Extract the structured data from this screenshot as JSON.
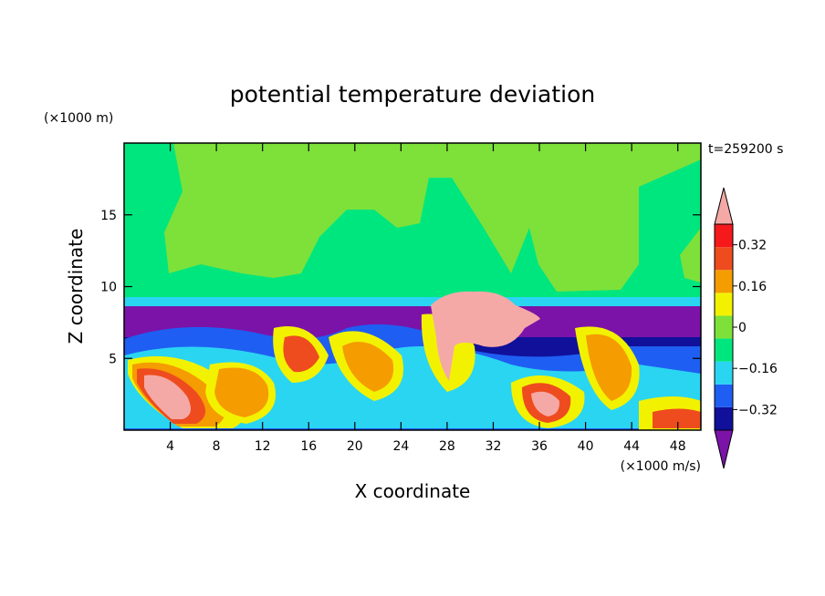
{
  "chart_data": {
    "type": "heatmap",
    "title": "potential temperature deviation",
    "xlabel": "X coordinate",
    "ylabel": "Z coordinate",
    "x_unit": "(×1000 m/s)",
    "y_unit": "(×1000 m)",
    "time_label": "t=259200 s",
    "xlim": [
      0,
      50
    ],
    "ylim": [
      0,
      20
    ],
    "x_ticks": [
      4,
      8,
      12,
      16,
      20,
      24,
      28,
      32,
      36,
      40,
      44,
      48
    ],
    "y_ticks": [
      5,
      10,
      15
    ],
    "colorbar": {
      "levels": [
        -0.4,
        -0.32,
        -0.24,
        -0.16,
        -0.08,
        0,
        0.08,
        0.16,
        0.24,
        0.32,
        0.4
      ],
      "tick_values": [
        0.32,
        0.16,
        0,
        -0.16,
        -0.32
      ],
      "tick_labels": [
        "0.32",
        "0.16",
        "0",
        "−0.16",
        "−0.32"
      ],
      "colors": [
        "#7b13a8",
        "#10109a",
        "#1f5ef2",
        "#2ad5f2",
        "#00e67e",
        "#7de13a",
        "#f2f200",
        "#f59c00",
        "#ee4c1f",
        "#f5191b",
        "#f5a9a6"
      ],
      "extend": "both"
    }
  }
}
